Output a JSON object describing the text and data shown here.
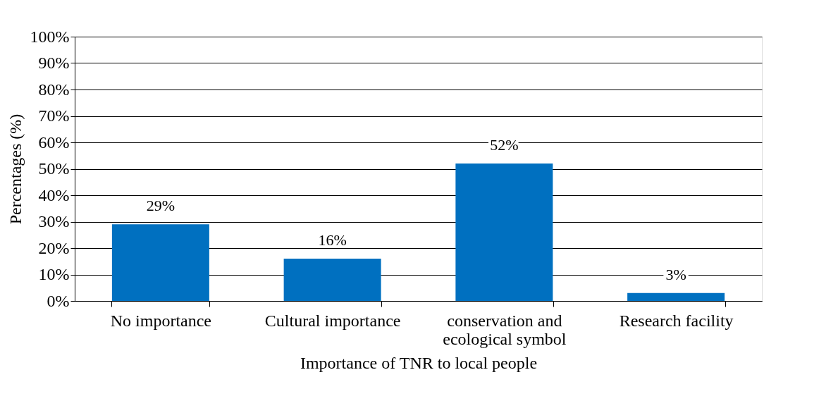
{
  "chart_data": {
    "type": "bar",
    "xlabel": "Importance of TNR to local people",
    "ylabel": "Percentages (%)",
    "categories": [
      "No importance",
      "Cultural importance",
      "conservation and ecological symbol",
      "Research facility"
    ],
    "values": [
      29,
      16,
      52,
      3
    ],
    "color": "#0070c0",
    "value_labels": [
      "29%",
      "16%",
      "52%",
      "3%"
    ],
    "ylim": [
      0,
      100
    ],
    "yticks": [
      {
        "value": 0,
        "label": "0%"
      },
      {
        "value": 10,
        "label": "10%"
      },
      {
        "value": 20,
        "label": "20%"
      },
      {
        "value": 30,
        "label": "30%"
      },
      {
        "value": 40,
        "label": "40%"
      },
      {
        "value": 50,
        "label": "50%"
      },
      {
        "value": 60,
        "label": "60%"
      },
      {
        "value": 70,
        "label": "70%"
      },
      {
        "value": 80,
        "label": "80%"
      },
      {
        "value": 90,
        "label": "90%"
      },
      {
        "value": 100,
        "label": "100%"
      }
    ],
    "grid": "y"
  }
}
